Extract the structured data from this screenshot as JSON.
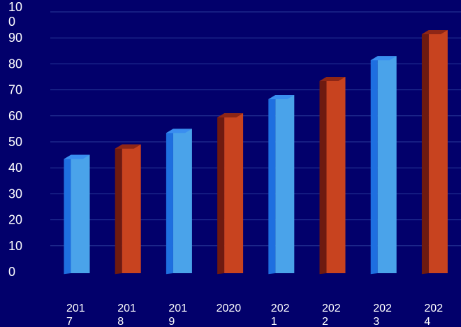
{
  "chart_data": {
    "type": "bar",
    "categories": [
      "2017",
      "2018",
      "2019",
      "2020",
      "2021",
      "2022",
      "2023",
      "2024"
    ],
    "category_label_lines": [
      [
        "201",
        "7"
      ],
      [
        "201",
        "8"
      ],
      [
        "201",
        "9"
      ],
      [
        "2020"
      ],
      [
        "202",
        "1"
      ],
      [
        "202",
        "2"
      ],
      [
        "202",
        "3"
      ],
      [
        "202",
        "4"
      ]
    ],
    "values": [
      45,
      49,
      55,
      61,
      68,
      75,
      83,
      93
    ],
    "ylim": [
      0,
      100
    ],
    "yticks": [
      0,
      10,
      20,
      30,
      40,
      50,
      60,
      70,
      80,
      90,
      100
    ],
    "ytick_label_lines": [
      [
        "0"
      ],
      [
        "10"
      ],
      [
        "20"
      ],
      [
        "30"
      ],
      [
        "40"
      ],
      [
        "50"
      ],
      [
        "60"
      ],
      [
        "70"
      ],
      [
        "80"
      ],
      [
        "90"
      ],
      [
        "10",
        "0"
      ]
    ],
    "grid": true,
    "legend": "none",
    "title": "",
    "xlabel": "",
    "ylabel": "",
    "colors": {
      "background": "#02006b",
      "grid": "#2a3a9a",
      "blue_front": "#4aa3ea",
      "blue_side": "#1e6fe0",
      "blue_top": "#3a8ef0",
      "orange_front": "#c8431f",
      "orange_side": "#6e1a10",
      "orange_top": "#8e2616"
    },
    "bar_color_pattern": [
      "blue",
      "orange",
      "blue",
      "orange",
      "blue",
      "orange",
      "blue",
      "orange"
    ]
  }
}
